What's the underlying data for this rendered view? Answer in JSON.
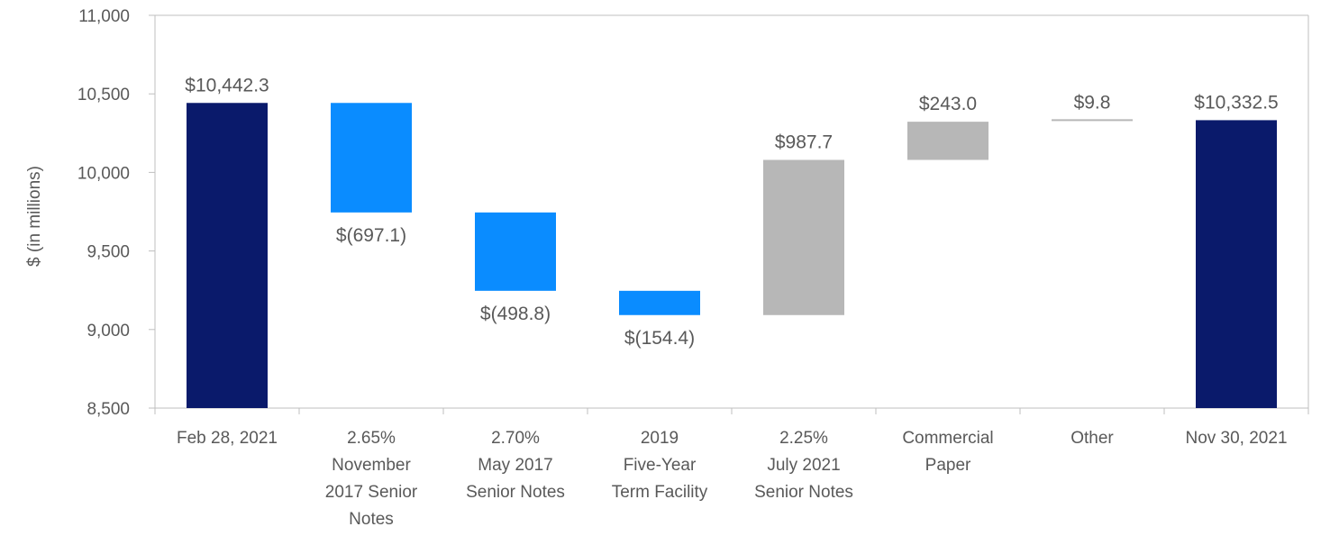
{
  "chart_data": {
    "type": "bar",
    "subtype": "waterfall",
    "title": "",
    "xlabel": "",
    "ylabel": "$ (in millions)",
    "ylim": [
      8500,
      11000
    ],
    "yticks": [
      8500,
      9000,
      9500,
      10000,
      10500,
      11000
    ],
    "ytick_labels": [
      "8,500",
      "9,000",
      "9,500",
      "10,000",
      "10,500",
      "11,000"
    ],
    "grid": false,
    "legend": "none",
    "categories": [
      [
        "Feb 28, 2021"
      ],
      [
        "2.65%",
        "November",
        "2017 Senior",
        "Notes"
      ],
      [
        "2.70%",
        "May 2017",
        "Senior Notes"
      ],
      [
        "2019",
        "Five-Year",
        "Term Facility"
      ],
      [
        "2.25%",
        "July 2021",
        "Senior Notes"
      ],
      [
        "Commercial",
        "Paper"
      ],
      [
        "Other"
      ],
      [
        "Nov 30, 2021"
      ]
    ],
    "bars": [
      {
        "kind": "total",
        "start": 8500,
        "end": 10442.3,
        "label": "$10,442.3",
        "label_pos": "above"
      },
      {
        "kind": "decrease",
        "start": 10442.3,
        "end": 9745.2,
        "label": "$(697.1)",
        "label_pos": "below"
      },
      {
        "kind": "decrease",
        "start": 9745.2,
        "end": 9246.4,
        "label": "$(498.8)",
        "label_pos": "below"
      },
      {
        "kind": "decrease",
        "start": 9246.4,
        "end": 9092.0,
        "label": "$(154.4)",
        "label_pos": "below"
      },
      {
        "kind": "increase",
        "start": 9092.0,
        "end": 10079.7,
        "label": "$987.7",
        "label_pos": "above"
      },
      {
        "kind": "increase",
        "start": 10079.7,
        "end": 10322.7,
        "label": "$243.0",
        "label_pos": "above"
      },
      {
        "kind": "increase",
        "start": 10322.7,
        "end": 10332.5,
        "label": "$9.8",
        "label_pos": "above"
      },
      {
        "kind": "total",
        "start": 8500,
        "end": 10332.5,
        "label": "$10,332.5",
        "label_pos": "above"
      }
    ],
    "colors": {
      "total": "#0a1a6b",
      "decrease": "#0a8cff",
      "increase": "#b7b7b7",
      "axis": "#bfbfbf",
      "text": "#595959"
    }
  }
}
